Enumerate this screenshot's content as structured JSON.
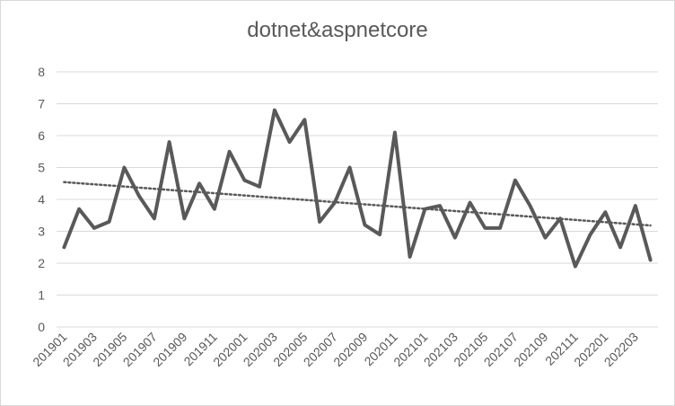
{
  "chart_data": {
    "type": "line",
    "title": "dotnet&aspnetcore",
    "xlabel": "",
    "ylabel": "",
    "ylim": [
      0,
      8
    ],
    "yticks": [
      0,
      1,
      2,
      3,
      4,
      5,
      6,
      7,
      8
    ],
    "grid": true,
    "legend": "none",
    "trendline": "linear (dotted)",
    "x": [
      "201901",
      "201902",
      "201903",
      "201904",
      "201905",
      "201906",
      "201907",
      "201908",
      "201909",
      "201910",
      "201911",
      "201912",
      "202001",
      "202002",
      "202003",
      "202004",
      "202005",
      "202006",
      "202007",
      "202008",
      "202009",
      "202010",
      "202011",
      "202012",
      "202101",
      "202102",
      "202103",
      "202104",
      "202105",
      "202106",
      "202107",
      "202108",
      "202109",
      "202110",
      "202111",
      "202112",
      "202201",
      "202202",
      "202203",
      "202204"
    ],
    "xtick_labels": [
      "201901",
      "201903",
      "201905",
      "201907",
      "201909",
      "201911",
      "202001",
      "202003",
      "202005",
      "202007",
      "202009",
      "202011",
      "202101",
      "202103",
      "202105",
      "202107",
      "202109",
      "202111",
      "202201",
      "202203"
    ],
    "series": [
      {
        "values": [
          2.5,
          3.7,
          3.1,
          3.3,
          5.0,
          4.1,
          3.4,
          5.8,
          3.4,
          4.5,
          3.7,
          5.5,
          4.6,
          4.4,
          6.8,
          5.8,
          6.5,
          3.3,
          3.9,
          5.0,
          3.2,
          2.9,
          6.1,
          2.2,
          3.7,
          3.8,
          2.8,
          3.9,
          3.1,
          3.1,
          4.6,
          3.8,
          2.8,
          3.4,
          1.9,
          2.9,
          3.6,
          2.5,
          3.8,
          2.1
        ],
        "color": "#595959"
      }
    ],
    "trend_color": "#595959",
    "grid_color": "#d9d9d9"
  }
}
